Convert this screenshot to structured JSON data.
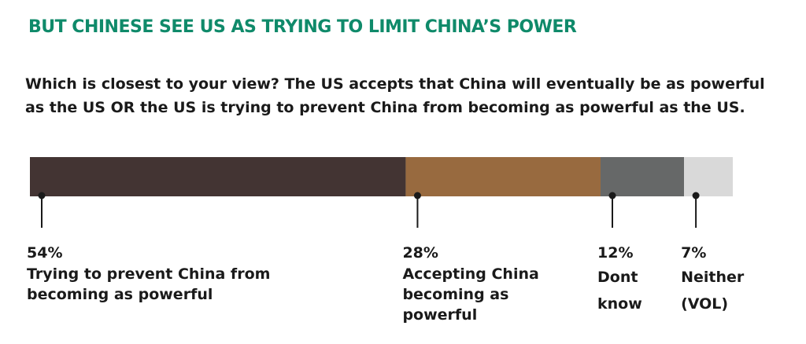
{
  "chart_data": {
    "type": "bar",
    "orientation": "horizontal-stacked",
    "title": "BUT CHINESE SEE US AS TRYING TO LIMIT CHINA’S POWER",
    "subtitle": "Which is closest to your view? The US accepts that China will eventually be as powerful as the US OR the US is trying to prevent China from becoming as powerful as the US.",
    "segments": [
      {
        "value": 54,
        "value_label": "54%",
        "label_lines": [
          "Trying to prevent China from",
          "becoming as powerful"
        ],
        "color": "#433433"
      },
      {
        "value": 28,
        "value_label": "28%",
        "label_lines": [
          "Accepting China",
          "becoming as",
          "powerful"
        ],
        "color": "#986a3f"
      },
      {
        "value": 12,
        "value_label": "12%",
        "label_lines": [
          "Dont",
          "know"
        ],
        "color": "#666868"
      },
      {
        "value": 7,
        "value_label": "7%",
        "label_lines": [
          "Neither",
          "(VOL)"
        ],
        "color": "#d9d9d9"
      }
    ]
  }
}
